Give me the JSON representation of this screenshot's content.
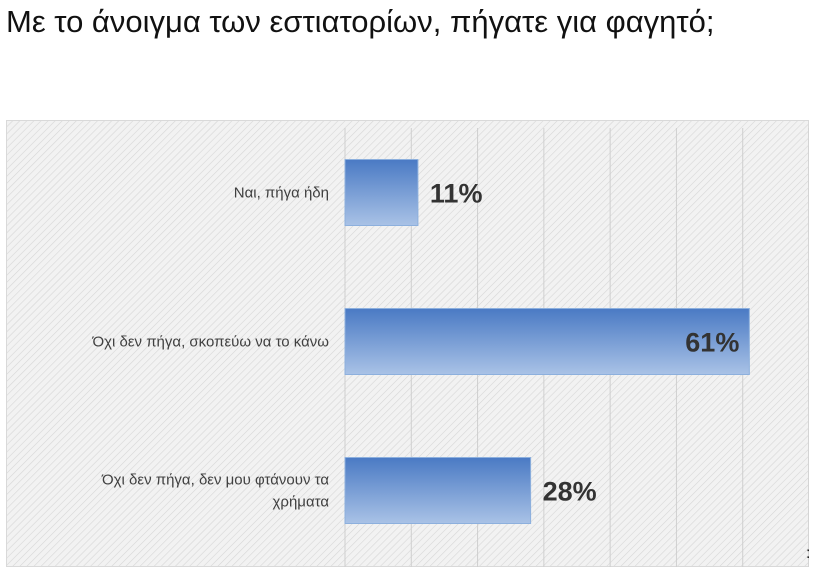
{
  "chart_data": {
    "type": "bar",
    "orientation": "horizontal",
    "title": "Με το άνοιγμα των εστιατορίων, πήγατε για φαγητό;",
    "categories": [
      [
        "Ναι, πήγα ήδη"
      ],
      [
        "Όχι δεν πήγα, σκοπεύω να το κάνω"
      ],
      [
        "Όχι δεν πήγα, δεν μου φτάνουν τα",
        "χρήματα"
      ]
    ],
    "values": [
      11,
      61,
      28
    ],
    "data_labels": [
      "11%",
      "61%",
      "28%"
    ],
    "data_label_position": [
      "outside",
      "inside",
      "outside"
    ],
    "xlim": [
      0,
      70
    ],
    "grid": true,
    "legend": "none",
    "bar_color_top": "#4a7ac4",
    "bar_color_bottom": "#a9c2e6",
    "bar_border": "#8db0dd",
    "plot_background": "#f2f2f2",
    "hatch_color": "#d6d6d6",
    "gridline_color": "#cfcfcf"
  },
  "footer": {
    "mark": ":"
  }
}
